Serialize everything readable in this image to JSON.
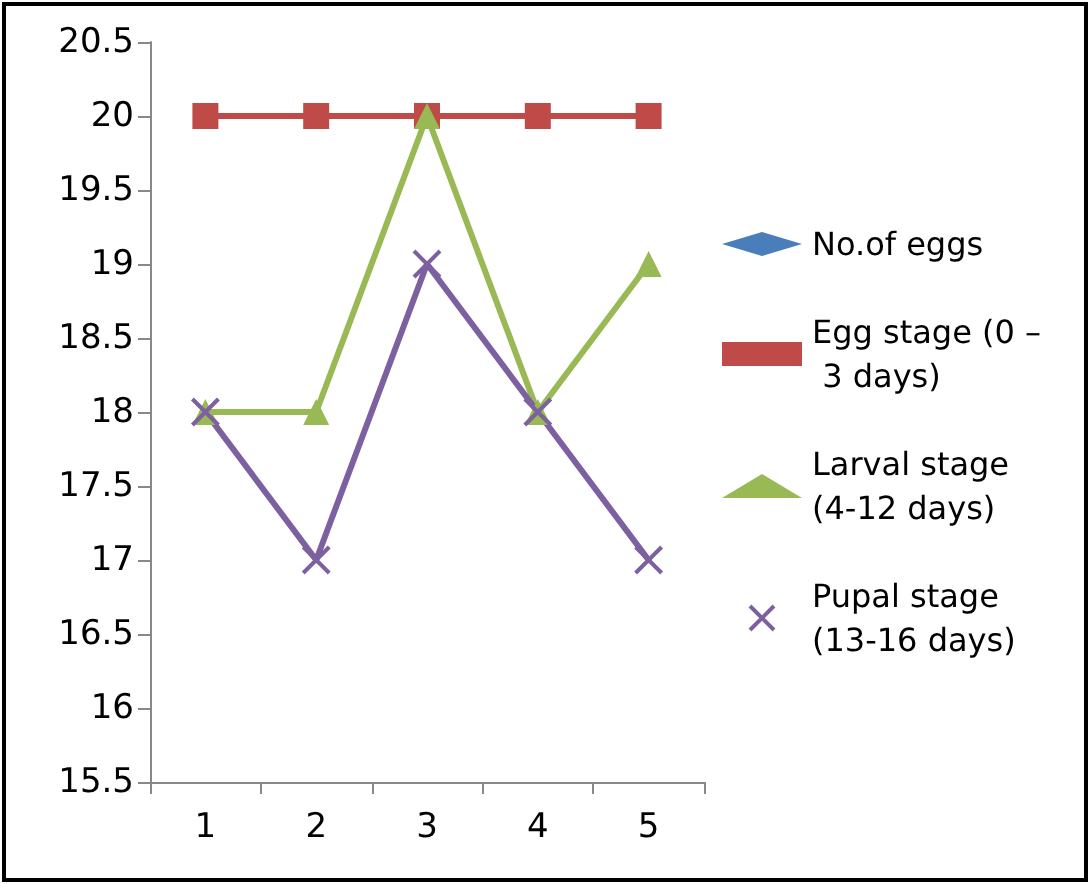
{
  "chart_data": {
    "type": "line",
    "categories": [
      "1",
      "2",
      "3",
      "4",
      "5"
    ],
    "series": [
      {
        "name": "No.of eggs",
        "color": "#4a7ebb",
        "marker": "diamond",
        "values": [
          null,
          null,
          null,
          null,
          null
        ]
      },
      {
        "name": "Egg stage (0 – 3 days)",
        "color": "#be4b48",
        "marker": "square",
        "values": [
          20,
          20,
          20,
          20,
          20
        ]
      },
      {
        "name": "Larval stage (4-12 days)",
        "color": "#98b954",
        "marker": "triangle",
        "values": [
          18,
          18,
          20,
          18,
          19
        ]
      },
      {
        "name": "Pupal stage (13-16 days)",
        "color": "#7d60a0",
        "marker": "cross",
        "values": [
          18,
          17,
          19,
          18,
          17
        ]
      }
    ],
    "ylim": [
      15.5,
      20.5
    ],
    "yticks": [
      15.5,
      16,
      16.5,
      17,
      17.5,
      18,
      18.5,
      19,
      19.5,
      20,
      20.5
    ],
    "grid": false,
    "legend": "right",
    "line_style": "solid"
  }
}
